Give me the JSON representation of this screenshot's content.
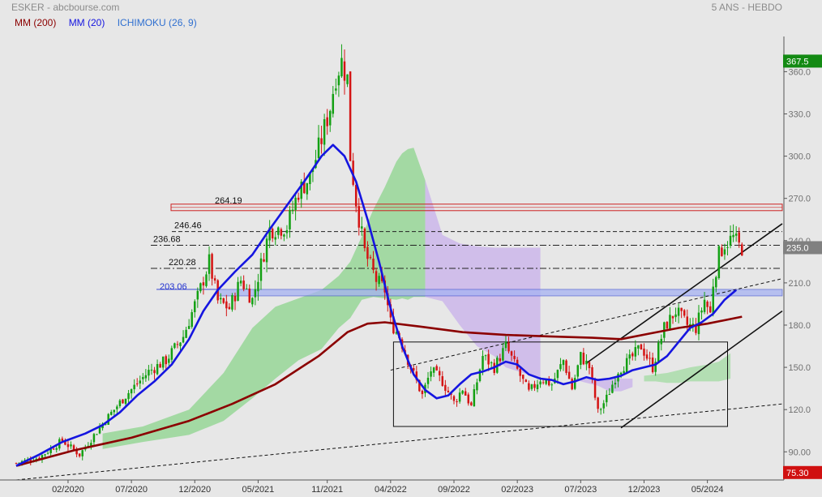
{
  "header": {
    "title": "ESKER - abcbourse.com",
    "period": "5 ANS - HEBDO"
  },
  "legend": [
    {
      "label": "MM (200)",
      "color": "#8b0000"
    },
    {
      "label": "MM (20)",
      "color": "#1515e0"
    },
    {
      "label": "ICHIMOKU (26, 9)",
      "color": "#2f6fd0"
    }
  ],
  "chart_data": {
    "type": "candlestick",
    "y_ticks": [
      "360.0",
      "330.0",
      "300.0",
      "270.0",
      "240.0",
      "210.0",
      "180.0",
      "150.0",
      "120.0",
      "90.00"
    ],
    "y_tick_values": [
      360,
      330,
      300,
      270,
      240,
      210,
      180,
      150,
      120,
      90
    ],
    "ylim": [
      70,
      385
    ],
    "x_ticks": [
      "02/2020",
      "07/2020",
      "12/2020",
      "05/2021",
      "11/2021",
      "04/2022",
      "09/2022",
      "02/2023",
      "07/2023",
      "12/2023",
      "05/2024"
    ],
    "x_tick_weeks": [
      18,
      40,
      62,
      84,
      108,
      130,
      152,
      174,
      196,
      218,
      240
    ],
    "n_weeks": 266,
    "price_badges": [
      {
        "label": "367.5",
        "value": 367.5,
        "color": "#138a13"
      },
      {
        "label": "235.0",
        "value": 235.0,
        "color": "#808080"
      },
      {
        "label": "75.30",
        "value": 75.3,
        "color": "#d01010"
      }
    ],
    "levels": [
      {
        "label": "264.19",
        "value": 264.19,
        "style": "box-red"
      },
      {
        "label": "246.46",
        "value": 246.46,
        "style": "dashed"
      },
      {
        "label": "236.68",
        "value": 236.68,
        "style": "dashdot"
      },
      {
        "label": "220.28",
        "value": 220.28,
        "style": "dashdot"
      },
      {
        "label": "203.06",
        "value": 203.06,
        "style": "box-blue"
      }
    ],
    "candle_keypoints": [
      [
        0,
        82
      ],
      [
        8,
        86
      ],
      [
        16,
        98
      ],
      [
        22,
        88
      ],
      [
        30,
        110
      ],
      [
        38,
        130
      ],
      [
        46,
        147
      ],
      [
        52,
        155
      ],
      [
        58,
        172
      ],
      [
        63,
        200
      ],
      [
        67,
        225
      ],
      [
        70,
        197
      ],
      [
        74,
        192
      ],
      [
        78,
        212
      ],
      [
        82,
        198
      ],
      [
        88,
        248
      ],
      [
        94,
        250
      ],
      [
        98,
        275
      ],
      [
        102,
        285
      ],
      [
        106,
        312
      ],
      [
        109,
        335
      ],
      [
        111,
        358
      ],
      [
        113,
        367
      ],
      [
        115,
        355
      ],
      [
        116,
        300
      ],
      [
        118,
        268
      ],
      [
        121,
        232
      ],
      [
        125,
        212
      ],
      [
        128,
        205
      ],
      [
        130,
        182
      ],
      [
        133,
        172
      ],
      [
        137,
        150
      ],
      [
        141,
        130
      ],
      [
        144,
        148
      ],
      [
        148,
        140
      ],
      [
        152,
        125
      ],
      [
        155,
        135
      ],
      [
        158,
        122
      ],
      [
        162,
        158
      ],
      [
        166,
        150
      ],
      [
        170,
        165
      ],
      [
        174,
        148
      ],
      [
        178,
        132
      ],
      [
        182,
        142
      ],
      [
        186,
        138
      ],
      [
        190,
        155
      ],
      [
        193,
        135
      ],
      [
        196,
        158
      ],
      [
        199,
        150
      ],
      [
        202,
        118
      ],
      [
        205,
        128
      ],
      [
        209,
        148
      ],
      [
        213,
        155
      ],
      [
        217,
        165
      ],
      [
        221,
        150
      ],
      [
        225,
        178
      ],
      [
        229,
        190
      ],
      [
        233,
        180
      ],
      [
        236,
        178
      ],
      [
        239,
        198
      ],
      [
        241,
        188
      ],
      [
        242,
        210
      ],
      [
        244,
        230
      ],
      [
        246,
        238
      ],
      [
        249,
        242
      ],
      [
        251,
        236
      ],
      [
        252,
        235
      ]
    ],
    "ma20_keypoints": [
      [
        0,
        80
      ],
      [
        8,
        88
      ],
      [
        16,
        97
      ],
      [
        24,
        103
      ],
      [
        30,
        109
      ],
      [
        36,
        118
      ],
      [
        42,
        130
      ],
      [
        48,
        140
      ],
      [
        54,
        152
      ],
      [
        60,
        170
      ],
      [
        65,
        190
      ],
      [
        70,
        205
      ],
      [
        76,
        218
      ],
      [
        82,
        230
      ],
      [
        88,
        248
      ],
      [
        94,
        265
      ],
      [
        100,
        282
      ],
      [
        106,
        300
      ],
      [
        110,
        308
      ],
      [
        114,
        300
      ],
      [
        118,
        282
      ],
      [
        122,
        255
      ],
      [
        126,
        225
      ],
      [
        130,
        192
      ],
      [
        134,
        165
      ],
      [
        138,
        145
      ],
      [
        142,
        134
      ],
      [
        146,
        128
      ],
      [
        150,
        130
      ],
      [
        154,
        138
      ],
      [
        158,
        145
      ],
      [
        162,
        147
      ],
      [
        166,
        150
      ],
      [
        170,
        154
      ],
      [
        174,
        152
      ],
      [
        178,
        145
      ],
      [
        182,
        142
      ],
      [
        186,
        141
      ],
      [
        190,
        138
      ],
      [
        194,
        140
      ],
      [
        198,
        143
      ],
      [
        202,
        141
      ],
      [
        206,
        142
      ],
      [
        210,
        144
      ],
      [
        214,
        148
      ],
      [
        218,
        150
      ],
      [
        222,
        152
      ],
      [
        226,
        158
      ],
      [
        230,
        168
      ],
      [
        234,
        178
      ],
      [
        238,
        182
      ],
      [
        242,
        188
      ],
      [
        246,
        198
      ],
      [
        250,
        205
      ]
    ],
    "ma200_keypoints": [
      [
        0,
        80
      ],
      [
        20,
        91
      ],
      [
        40,
        100
      ],
      [
        60,
        112
      ],
      [
        75,
        124
      ],
      [
        90,
        138
      ],
      [
        105,
        158
      ],
      [
        115,
        175
      ],
      [
        122,
        181
      ],
      [
        128,
        182
      ],
      [
        140,
        179
      ],
      [
        155,
        175
      ],
      [
        170,
        173
      ],
      [
        185,
        172
      ],
      [
        200,
        171
      ],
      [
        210,
        170
      ],
      [
        220,
        174
      ],
      [
        230,
        178
      ],
      [
        240,
        181
      ],
      [
        252,
        186
      ]
    ],
    "cloud": {
      "green_upper": [
        [
          30,
          103
        ],
        [
          44,
          108
        ],
        [
          60,
          120
        ],
        [
          72,
          146
        ],
        [
          82,
          178
        ],
        [
          90,
          193
        ],
        [
          98,
          199
        ],
        [
          106,
          205
        ],
        [
          112,
          215
        ],
        [
          116,
          225
        ],
        [
          120,
          243
        ],
        [
          124,
          262
        ],
        [
          128,
          278
        ],
        [
          132,
          296
        ],
        [
          134,
          302
        ],
        [
          136,
          305
        ],
        [
          138,
          306
        ],
        [
          142,
          283
        ]
      ],
      "green_lower": [
        [
          30,
          92
        ],
        [
          44,
          97
        ],
        [
          60,
          102
        ],
        [
          72,
          112
        ],
        [
          82,
          128
        ],
        [
          90,
          142
        ],
        [
          98,
          155
        ],
        [
          106,
          163
        ],
        [
          112,
          178
        ],
        [
          116,
          185
        ],
        [
          120,
          198
        ],
        [
          124,
          200
        ],
        [
          128,
          199
        ],
        [
          132,
          198
        ],
        [
          134,
          199
        ],
        [
          136,
          198
        ],
        [
          138,
          200
        ],
        [
          142,
          200
        ]
      ],
      "purple_upper": [
        [
          142,
          283
        ],
        [
          148,
          244
        ],
        [
          154,
          238
        ],
        [
          160,
          236
        ],
        [
          166,
          235
        ],
        [
          170,
          235
        ],
        [
          176,
          235
        ],
        [
          182,
          235
        ]
      ],
      "purple_lower": [
        [
          142,
          200
        ],
        [
          148,
          197
        ],
        [
          154,
          180
        ],
        [
          160,
          165
        ],
        [
          166,
          158
        ],
        [
          170,
          150
        ],
        [
          176,
          146
        ],
        [
          182,
          142
        ]
      ],
      "purple_small_upper": [
        [
          196,
          142
        ],
        [
          202,
          142
        ],
        [
          206,
          142
        ],
        [
          210,
          142
        ],
        [
          214,
          142
        ]
      ],
      "purple_small_lower": [
        [
          196,
          140
        ],
        [
          202,
          137
        ],
        [
          206,
          133
        ],
        [
          210,
          133
        ],
        [
          214,
          136
        ]
      ],
      "green_small_upper": [
        [
          218,
          144
        ],
        [
          222,
          145
        ],
        [
          226,
          146
        ],
        [
          230,
          148
        ],
        [
          234,
          150
        ],
        [
          240,
          152
        ],
        [
          244,
          154
        ],
        [
          248,
          160
        ]
      ],
      "green_small_lower": [
        [
          218,
          140
        ],
        [
          222,
          140
        ],
        [
          226,
          139
        ],
        [
          230,
          139
        ],
        [
          234,
          140
        ],
        [
          240,
          140
        ],
        [
          244,
          140
        ],
        [
          248,
          142
        ]
      ]
    },
    "trendlines": [
      {
        "style": "dashed",
        "from": [
          0,
          70
        ],
        "to": [
          266,
          124
        ]
      },
      {
        "style": "dashed",
        "from": [
          130,
          148
        ],
        "to": [
          266,
          213
        ]
      },
      {
        "style": "solid",
        "from": [
          210,
          107
        ],
        "to": [
          266,
          190
        ]
      },
      {
        "style": "solid",
        "from": [
          198,
          153
        ],
        "to": [
          266,
          252
        ]
      }
    ],
    "range_box": {
      "w0": 131,
      "w1": 247,
      "y0": 108,
      "y1": 168
    }
  }
}
